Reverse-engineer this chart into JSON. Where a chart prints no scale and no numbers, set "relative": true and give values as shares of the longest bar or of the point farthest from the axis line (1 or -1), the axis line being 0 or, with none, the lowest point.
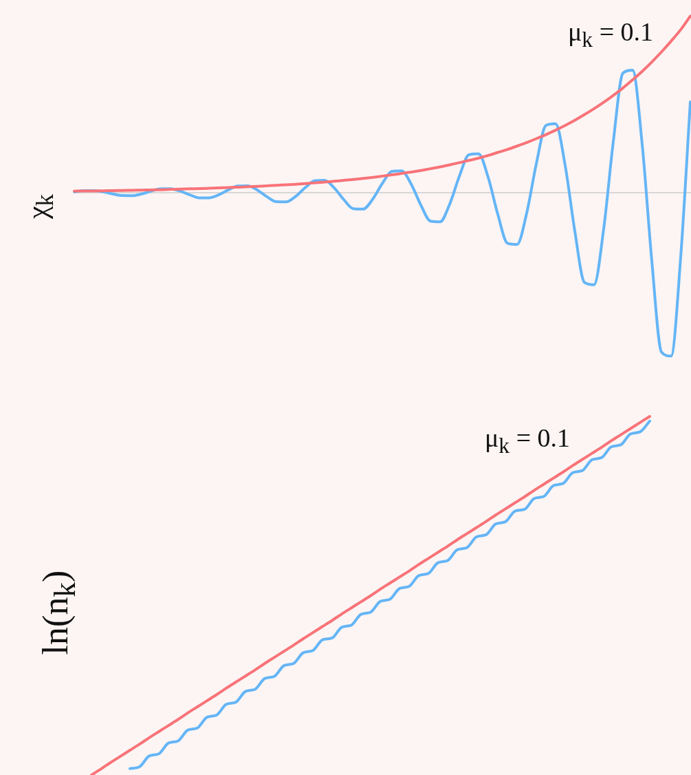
{
  "chart_data": [
    {
      "type": "line",
      "relative": true,
      "tick_labels": false,
      "ylabel": "χ$_{k}$",
      "annotations": [
        "μ$_{k}$ = 0.1"
      ],
      "categories": [
        null,
        null,
        null,
        null,
        null,
        null,
        null,
        null,
        null,
        null,
        null,
        null,
        null,
        null,
        null,
        null,
        null,
        null,
        null,
        null,
        null,
        null,
        null,
        null,
        null,
        null,
        null,
        null,
        null,
        null,
        null,
        null,
        null,
        null,
        null,
        null,
        null,
        null,
        null,
        null,
        null,
        null,
        null,
        null,
        null,
        null,
        null,
        null,
        null,
        null,
        null,
        null,
        null,
        null,
        null,
        null,
        null,
        null,
        null,
        null,
        null,
        null,
        null,
        null,
        null
      ],
      "series": [
        {
          "color": "#64b5f6",
          "values": [
            0.005,
            0.012,
            0.012,
            0.005,
            -0.007,
            -0.016,
            -0.017,
            -0.007,
            0.009,
            0.022,
            0.022,
            0.009,
            -0.012,
            -0.029,
            -0.029,
            -0.012,
            0.016,
            0.038,
            0.039,
            0.016,
            -0.022,
            -0.051,
            -0.052,
            -0.021,
            0.029,
            0.068,
            0.07,
            0.028,
            -0.039,
            -0.091,
            -0.093,
            -0.037,
            0.052,
            0.121,
            0.124,
            0.049,
            -0.069,
            -0.161,
            -0.165,
            -0.065,
            0.092,
            0.215,
            0.22,
            0.087,
            -0.122,
            -0.286,
            -0.293,
            -0.116,
            0.163,
            0.381,
            0.391,
            0.154,
            -0.217,
            -0.508,
            -0.521,
            -0.205,
            0.29,
            0.677,
            0.694,
            0.274,
            -0.386,
            -0.902,
            -0.925,
            -0.365,
            0.514
          ]
        },
        {
          "color": "#f87378",
          "values": [
            0.009,
            0.01,
            0.01,
            0.011,
            0.012,
            0.013,
            0.014,
            0.015,
            0.016,
            0.017,
            0.019,
            0.02,
            0.022,
            0.023,
            0.025,
            0.027,
            0.029,
            0.031,
            0.034,
            0.036,
            0.039,
            0.042,
            0.045,
            0.048,
            0.052,
            0.056,
            0.06,
            0.065,
            0.07,
            0.075,
            0.081,
            0.087,
            0.094,
            0.101,
            0.109,
            0.117,
            0.126,
            0.136,
            0.146,
            0.158,
            0.17,
            0.183,
            0.196,
            0.211,
            0.228,
            0.245,
            0.264,
            0.284,
            0.306,
            0.329,
            0.354,
            0.381,
            0.41,
            0.442,
            0.476,
            0.512,
            0.551,
            0.593,
            0.639,
            0.687,
            0.74,
            0.797,
            0.858,
            0.923,
            1
          ]
        }
      ]
    },
    {
      "type": "line",
      "relative": true,
      "tick_labels": false,
      "ylabel": "ln(n$_{k}$)",
      "annotations": [
        "μ$_{k}$ = 0.1"
      ],
      "categories": [
        null,
        null,
        null,
        null,
        null,
        null,
        null,
        null,
        null,
        null,
        null,
        null,
        null,
        null,
        null,
        null,
        null,
        null,
        null,
        null,
        null,
        null,
        null,
        null,
        null,
        null,
        null,
        null,
        null,
        null,
        null,
        null,
        null,
        null,
        null,
        null,
        null,
        null,
        null,
        null,
        null,
        null,
        null,
        null,
        null,
        null,
        null,
        null,
        null,
        null,
        null,
        null,
        null,
        null,
        null,
        null,
        null,
        null,
        null
      ],
      "series": [
        {
          "color": "#64b5f6",
          "values": [
            null,
            null,
            null,
            null,
            0.018,
            0.023,
            0.053,
            0.059,
            0.089,
            0.095,
            0.125,
            0.131,
            0.161,
            0.167,
            0.197,
            0.203,
            0.233,
            0.239,
            0.269,
            0.275,
            0.305,
            0.311,
            0.341,
            0.347,
            0.377,
            0.382,
            0.412,
            0.418,
            0.448,
            0.454,
            0.484,
            0.49,
            0.52,
            0.526,
            0.556,
            0.562,
            0.592,
            0.598,
            0.628,
            0.634,
            0.664,
            0.67,
            0.7,
            0.706,
            0.736,
            0.741,
            0.771,
            0.777,
            0.807,
            0.813,
            0.843,
            0.849,
            0.879,
            0.885,
            0.915,
            0.921,
            0.951,
            0.957,
            0.987
          ]
        },
        {
          "color": "#f87378",
          "values": [
            0,
            0.017,
            0.035,
            0.052,
            0.069,
            0.086,
            0.104,
            0.121,
            0.138,
            0.155,
            0.173,
            0.19,
            0.207,
            0.224,
            0.242,
            0.259,
            0.276,
            0.293,
            0.311,
            0.328,
            0.345,
            0.362,
            0.38,
            0.397,
            0.414,
            0.431,
            0.449,
            0.466,
            0.483,
            0.5,
            0.518,
            0.535,
            0.552,
            0.569,
            0.587,
            0.604,
            0.621,
            0.638,
            0.656,
            0.673,
            0.69,
            0.707,
            0.725,
            0.742,
            0.759,
            0.776,
            0.794,
            0.811,
            0.828,
            0.845,
            0.863,
            0.88,
            0.897,
            0.914,
            0.932,
            0.949,
            0.966,
            0.983,
            1
          ]
        }
      ]
    }
  ]
}
